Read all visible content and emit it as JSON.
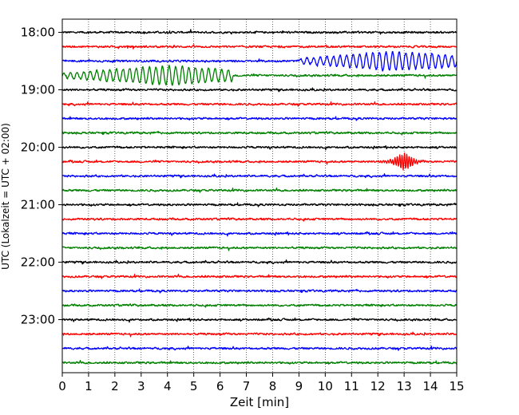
{
  "chart_data": {
    "type": "line",
    "title": "",
    "xlabel": "Zeit  [min]",
    "ylabel": "UTC (Lokalzeit = UTC + 02:00)",
    "xlim": [
      0,
      15
    ],
    "x_ticks": [
      "0",
      "1",
      "2",
      "3",
      "4",
      "5",
      "6",
      "7",
      "8",
      "9",
      "10",
      "11",
      "12",
      "13",
      "14",
      "15"
    ],
    "y_ticks": [
      "18:00",
      "19:00",
      "20:00",
      "21:00",
      "22:00",
      "23:00"
    ],
    "grid": "vertical dotted",
    "legend": "none",
    "trace_colors": [
      "#000000",
      "#ff0000",
      "#0000ff",
      "#008000"
    ],
    "traces": [
      {
        "start": "18:00",
        "events": []
      },
      {
        "start": "18:15",
        "events": []
      },
      {
        "start": "18:30",
        "events": [
          {
            "from_min": 9,
            "to_min": 15,
            "peak_min": 12.5,
            "amplitude": "large"
          }
        ]
      },
      {
        "start": "18:45",
        "events": [
          {
            "from_min": 0,
            "to_min": 6.5,
            "peak_min": 4,
            "amplitude": "large"
          }
        ]
      },
      {
        "start": "19:00",
        "events": []
      },
      {
        "start": "19:15",
        "events": []
      },
      {
        "start": "19:30",
        "events": []
      },
      {
        "start": "19:45",
        "events": []
      },
      {
        "start": "20:00",
        "events": []
      },
      {
        "start": "20:15",
        "events": [
          {
            "from_min": 12,
            "to_min": 13.8,
            "peak_min": 13,
            "amplitude": "small"
          }
        ]
      },
      {
        "start": "20:30",
        "events": []
      },
      {
        "start": "20:45",
        "events": []
      },
      {
        "start": "21:00",
        "events": []
      },
      {
        "start": "21:15",
        "events": []
      },
      {
        "start": "21:30",
        "events": []
      },
      {
        "start": "21:45",
        "events": []
      },
      {
        "start": "22:00",
        "events": []
      },
      {
        "start": "22:15",
        "events": []
      },
      {
        "start": "22:30",
        "events": []
      },
      {
        "start": "22:45",
        "events": []
      },
      {
        "start": "23:00",
        "events": []
      },
      {
        "start": "23:15",
        "events": []
      },
      {
        "start": "23:30",
        "events": []
      },
      {
        "start": "23:45",
        "events": []
      }
    ]
  }
}
